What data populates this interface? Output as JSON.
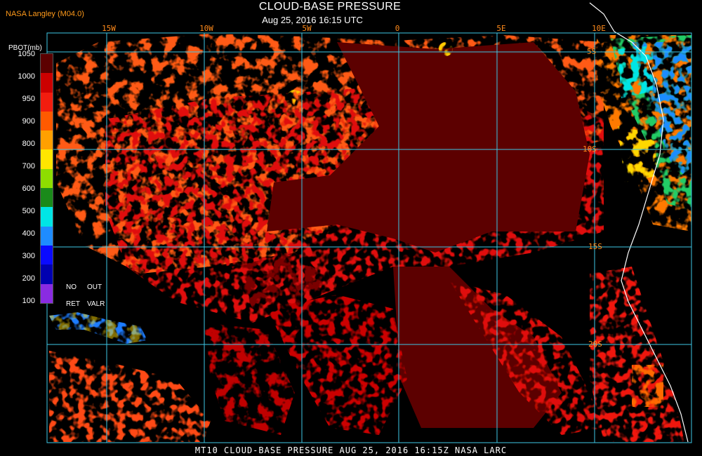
{
  "header": {
    "org": "NASA Langley (M04.0)",
    "title": "CLOUD-BASE PRESSURE",
    "datetime": "Aug 25, 2016 16:15 UTC"
  },
  "grid": {
    "lon_labels": [
      "15W",
      "10W",
      "5W",
      "0",
      "5E",
      "10E"
    ],
    "lat_labels": [
      "5S",
      "10S",
      "15S",
      "20S"
    ]
  },
  "legend": {
    "title": "PBOT(mb)",
    "ticks": [
      "1050",
      "1000",
      "950",
      "900",
      "800",
      "700",
      "600",
      "500",
      "400",
      "300",
      "200",
      "100"
    ],
    "colors": [
      "#5c0000",
      "#cc0000",
      "#f21d0f",
      "#ff5a00",
      "#ffa000",
      "#ffe600",
      "#8edd00",
      "#1a8a1a",
      "#00e5e5",
      "#1e8cff",
      "#0a0aff",
      "#0000b0",
      "#8a2be2"
    ],
    "notes": [
      "NO",
      "OUT",
      "RET",
      "VALR"
    ]
  },
  "footer": "MT10  CLOUD-BASE PRESSURE   AUG 25, 2016 16:15Z   NASA LARC"
}
